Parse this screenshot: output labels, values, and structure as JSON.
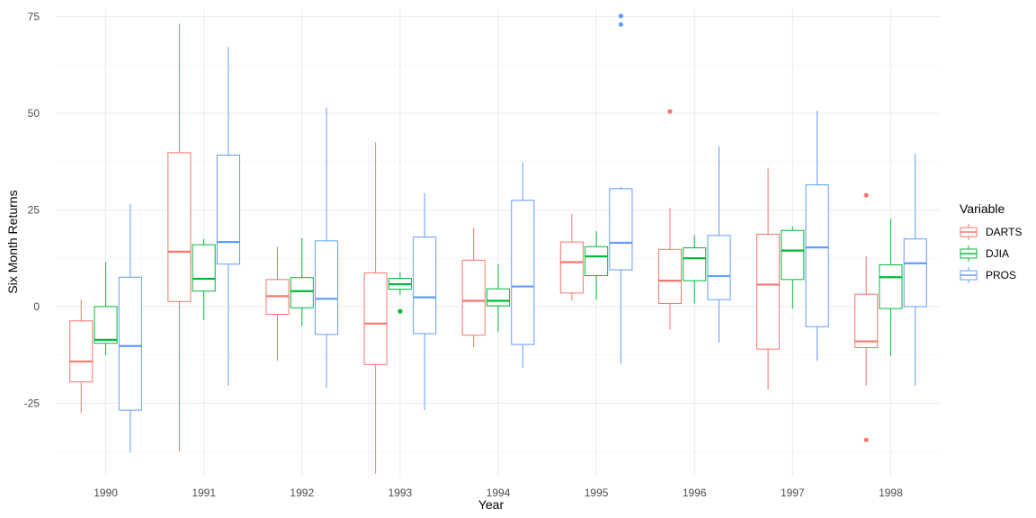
{
  "chart_data": {
    "type": "boxplot",
    "title": "",
    "xlabel": "Year",
    "ylabel": "Six Month Returns",
    "categories": [
      "1990",
      "1991",
      "1992",
      "1993",
      "1994",
      "1995",
      "1996",
      "1997",
      "1998"
    ],
    "y_ticks": [
      -25,
      0,
      25,
      50,
      75
    ],
    "y_tick_labels": [
      "-25",
      "0",
      "25",
      "50",
      "75"
    ],
    "ylim": [
      -44,
      77
    ],
    "grid": true,
    "legend": {
      "title": "Variable",
      "position": "right"
    },
    "series": [
      {
        "name": "DARTS",
        "color": "#f8766d",
        "boxes": [
          {
            "min": -27.5,
            "q1": -19.5,
            "median": -14.2,
            "q3": -3.7,
            "max": 1.8,
            "outliers": []
          },
          {
            "min": -37.5,
            "q1": 1.3,
            "median": 14.2,
            "q3": 39.8,
            "max": 73.2,
            "outliers": []
          },
          {
            "min": -14.0,
            "q1": -2.0,
            "median": 2.7,
            "q3": 7.0,
            "max": 15.5,
            "outliers": []
          },
          {
            "min": -43.2,
            "q1": -15.0,
            "median": -4.4,
            "q3": 8.7,
            "max": 42.5,
            "outliers": []
          },
          {
            "min": -10.5,
            "q1": -7.4,
            "median": 1.5,
            "q3": 12.0,
            "max": 20.5,
            "outliers": []
          },
          {
            "min": 1.5,
            "q1": 3.5,
            "median": 11.5,
            "q3": 16.7,
            "max": 24.0,
            "outliers": []
          },
          {
            "min": -6.0,
            "q1": 0.8,
            "median": 6.7,
            "q3": 14.8,
            "max": 25.5,
            "outliers": [
              50.5
            ]
          },
          {
            "min": -21.5,
            "q1": -11.0,
            "median": 5.7,
            "q3": 18.7,
            "max": 35.7,
            "outliers": []
          },
          {
            "min": -20.5,
            "q1": -10.6,
            "median": -9.0,
            "q3": 3.2,
            "max": 13.0,
            "outliers": [
              28.8,
              -34.5
            ]
          }
        ]
      },
      {
        "name": "DJIA",
        "color": "#00ba38",
        "boxes": [
          {
            "min": -12.5,
            "q1": -9.5,
            "median": -8.6,
            "q3": 0.0,
            "max": 11.5,
            "outliers": []
          },
          {
            "min": -3.5,
            "q1": 4.0,
            "median": 7.2,
            "q3": 16.0,
            "max": 17.5,
            "outliers": []
          },
          {
            "min": -5.0,
            "q1": -0.3,
            "median": 4.0,
            "q3": 7.5,
            "max": 17.7,
            "outliers": []
          },
          {
            "min": 3.0,
            "q1": 4.5,
            "median": 5.8,
            "q3": 7.3,
            "max": 9.0,
            "outliers": [
              -1.2
            ]
          },
          {
            "min": -6.5,
            "q1": 0.2,
            "median": 1.5,
            "q3": 4.6,
            "max": 11.0,
            "outliers": []
          },
          {
            "min": 1.8,
            "q1": 8.0,
            "median": 13.0,
            "q3": 15.5,
            "max": 19.5,
            "outliers": []
          },
          {
            "min": 0.8,
            "q1": 6.7,
            "median": 12.5,
            "q3": 15.2,
            "max": 18.5,
            "outliers": []
          },
          {
            "min": -0.5,
            "q1": 7.0,
            "median": 14.5,
            "q3": 19.7,
            "max": 20.7,
            "outliers": []
          },
          {
            "min": -12.8,
            "q1": -0.5,
            "median": 7.6,
            "q3": 10.8,
            "max": 22.7,
            "outliers": []
          }
        ]
      },
      {
        "name": "PROS",
        "color": "#619cff",
        "boxes": [
          {
            "min": -37.8,
            "q1": -26.8,
            "median": -10.2,
            "q3": 7.6,
            "max": 26.5,
            "outliers": []
          },
          {
            "min": -20.5,
            "q1": 11.0,
            "median": 16.7,
            "q3": 39.2,
            "max": 67.2,
            "outliers": []
          },
          {
            "min": -21.0,
            "q1": -7.2,
            "median": 2.0,
            "q3": 17.0,
            "max": 51.5,
            "outliers": []
          },
          {
            "min": -26.8,
            "q1": -7.0,
            "median": 2.4,
            "q3": 18.0,
            "max": 29.3,
            "outliers": []
          },
          {
            "min": -15.8,
            "q1": -9.8,
            "median": 5.2,
            "q3": 27.5,
            "max": 37.2,
            "outliers": []
          },
          {
            "min": -14.8,
            "q1": 9.5,
            "median": 16.5,
            "q3": 30.5,
            "max": 31.0,
            "outliers": [
              75.2,
              73.0
            ]
          },
          {
            "min": -9.3,
            "q1": 1.8,
            "median": 7.9,
            "q3": 18.4,
            "max": 41.5,
            "outliers": []
          },
          {
            "min": -14.0,
            "q1": -5.2,
            "median": 15.3,
            "q3": 31.5,
            "max": 50.7,
            "outliers": []
          },
          {
            "min": -20.5,
            "q1": 0.0,
            "median": 11.2,
            "q3": 17.5,
            "max": 39.5,
            "outliers": []
          }
        ]
      }
    ]
  }
}
